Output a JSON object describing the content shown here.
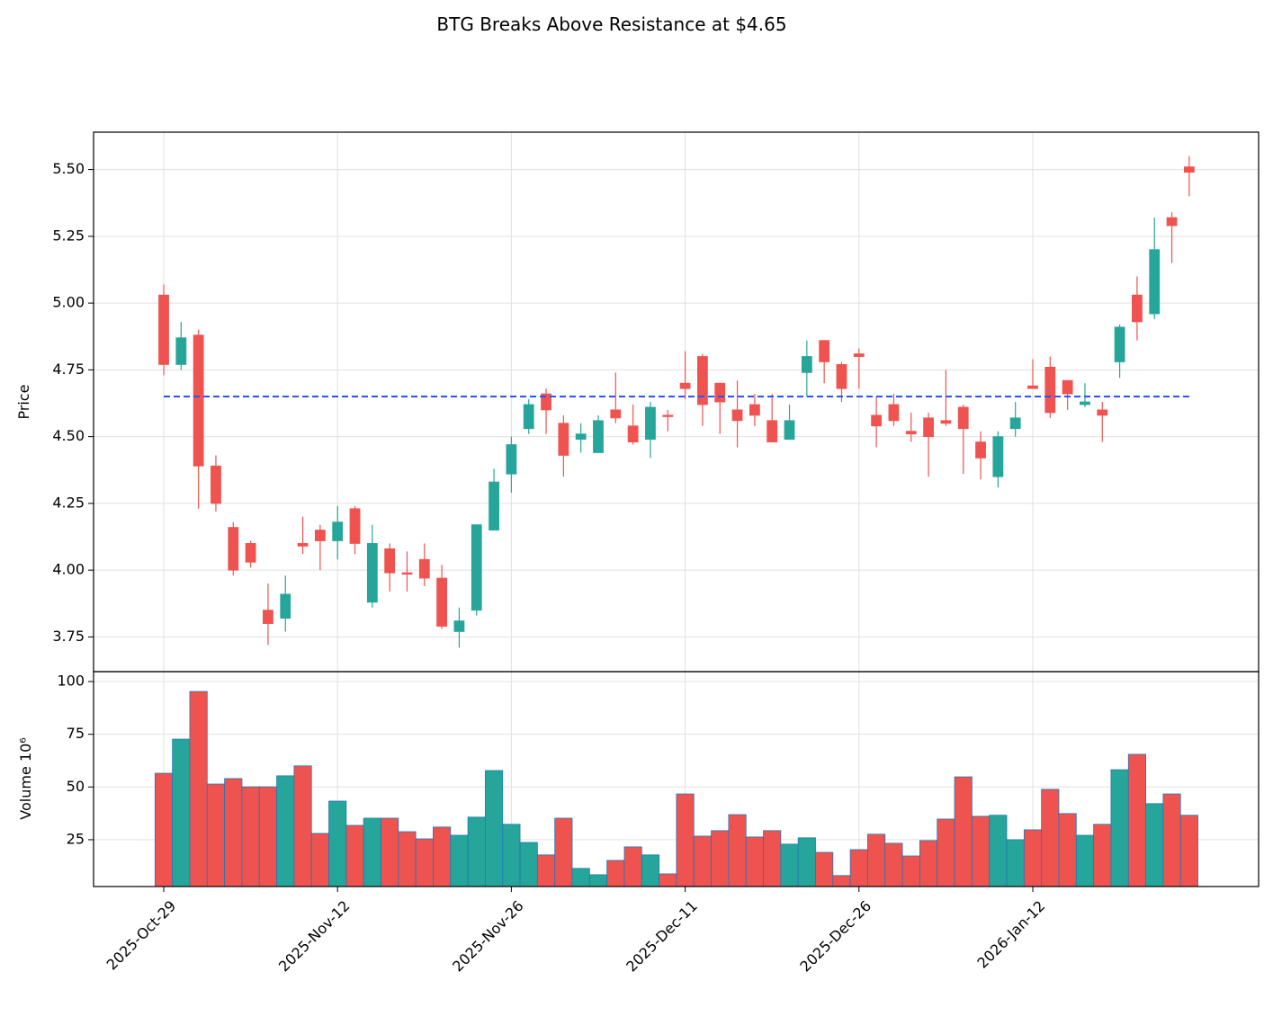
{
  "chart_data": {
    "type": "candlestick",
    "title": "BTG Breaks Above Resistance at $4.65",
    "ylabel": "Price",
    "volume_ylabel": "Volume  10⁶",
    "categories": [
      "2025-Oct-29",
      null,
      null,
      null,
      null,
      null,
      null,
      null,
      null,
      null,
      "2025-Nov-12",
      null,
      null,
      null,
      null,
      null,
      null,
      null,
      null,
      null,
      "2025-Nov-26",
      null,
      null,
      null,
      null,
      null,
      null,
      null,
      null,
      null,
      "2025-Dec-11",
      null,
      null,
      null,
      null,
      null,
      null,
      null,
      null,
      null,
      "2025-Dec-26",
      null,
      null,
      null,
      null,
      null,
      null,
      null,
      null,
      null,
      "2026-Jan-12",
      null,
      null,
      null,
      null,
      null,
      null,
      null,
      null,
      null
    ],
    "open": [
      5.03,
      4.77,
      4.88,
      4.39,
      4.16,
      4.1,
      3.85,
      3.82,
      4.1,
      4.15,
      4.11,
      4.23,
      3.88,
      4.08,
      3.99,
      4.04,
      3.97,
      3.77,
      3.85,
      4.15,
      4.36,
      4.53,
      4.66,
      4.55,
      4.49,
      4.44,
      4.6,
      4.54,
      4.49,
      4.58,
      4.7,
      4.8,
      4.7,
      4.6,
      4.62,
      4.56,
      4.49,
      4.74,
      4.86,
      4.77,
      4.81,
      4.58,
      4.62,
      4.52,
      4.57,
      4.56,
      4.61,
      4.48,
      4.35,
      4.53,
      4.69,
      4.76,
      4.71,
      4.62,
      4.6,
      4.78,
      5.03,
      4.96,
      5.32,
      5.51
    ],
    "high": [
      5.07,
      4.93,
      4.9,
      4.43,
      4.18,
      4.11,
      3.95,
      3.98,
      4.2,
      4.17,
      4.24,
      4.24,
      4.17,
      4.1,
      4.07,
      4.1,
      4.02,
      3.86,
      4.17,
      4.38,
      4.5,
      4.64,
      4.68,
      4.58,
      4.55,
      4.58,
      4.74,
      4.62,
      4.63,
      4.6,
      4.82,
      4.81,
      4.7,
      4.71,
      4.66,
      4.66,
      4.62,
      4.86,
      4.86,
      4.78,
      4.83,
      4.65,
      4.66,
      4.59,
      4.59,
      4.75,
      4.62,
      4.52,
      4.52,
      4.63,
      4.79,
      4.8,
      4.71,
      4.7,
      4.63,
      4.92,
      5.1,
      5.32,
      5.34,
      5.55
    ],
    "low": [
      4.73,
      4.75,
      4.23,
      4.22,
      3.98,
      4.01,
      3.72,
      3.77,
      4.06,
      4.0,
      4.04,
      4.06,
      3.86,
      3.92,
      3.92,
      3.94,
      3.78,
      3.71,
      3.83,
      4.15,
      4.29,
      4.51,
      4.51,
      4.35,
      4.44,
      4.44,
      4.55,
      4.47,
      4.42,
      4.52,
      4.64,
      4.54,
      4.51,
      4.46,
      4.54,
      4.48,
      4.49,
      4.65,
      4.7,
      4.63,
      4.68,
      4.46,
      4.54,
      4.48,
      4.35,
      4.54,
      4.36,
      4.34,
      4.31,
      4.5,
      4.68,
      4.57,
      4.6,
      4.61,
      4.48,
      4.72,
      4.86,
      4.94,
      5.15,
      5.4
    ],
    "close": [
      4.77,
      4.87,
      4.39,
      4.25,
      4.0,
      4.03,
      3.8,
      3.91,
      4.09,
      4.11,
      4.18,
      4.1,
      4.1,
      3.99,
      3.985,
      3.97,
      3.79,
      3.81,
      4.17,
      4.33,
      4.47,
      4.62,
      4.6,
      4.43,
      4.51,
      4.56,
      4.57,
      4.48,
      4.61,
      4.575,
      4.68,
      4.62,
      4.63,
      4.56,
      4.58,
      4.48,
      4.56,
      4.8,
      4.78,
      4.68,
      4.8,
      4.54,
      4.56,
      4.51,
      4.5,
      4.55,
      4.53,
      4.42,
      4.5,
      4.57,
      4.68,
      4.59,
      4.66,
      4.63,
      4.58,
      4.91,
      4.93,
      5.2,
      5.29,
      5.49
    ],
    "volume": [
      56.5,
      72.7,
      95.3,
      51.4,
      54.0,
      50.1,
      50.1,
      55.3,
      60.0,
      28.0,
      43.3,
      31.8,
      35.2,
      35.2,
      28.8,
      25.4,
      31.0,
      27.1,
      35.7,
      57.8,
      32.3,
      23.7,
      17.8,
      35.2,
      11.4,
      8.4,
      15.2,
      21.6,
      17.8,
      8.8,
      46.7,
      26.7,
      29.3,
      36.9,
      26.3,
      29.3,
      22.9,
      25.9,
      19.0,
      8.0,
      20.3,
      27.6,
      23.3,
      17.3,
      24.6,
      34.8,
      54.8,
      36.1,
      36.6,
      25.0,
      29.7,
      48.9,
      37.4,
      27.1,
      32.3,
      58.2,
      65.5,
      42.1,
      46.7,
      36.6
    ],
    "up_color": "#26a69a",
    "down_color": "#ef5350",
    "volume_edge_color": "#1f77b4",
    "ylim": [
      3.62,
      5.64
    ],
    "yticks": [
      3.75,
      {
        "value": 4.0,
        "label": "4.00"
      },
      4.25,
      {
        "value": 4.5,
        "label": "4.50"
      },
      4.75,
      {
        "value": 5.0,
        "label": "5.00"
      },
      5.25,
      {
        "value": 5.5,
        "label": "5.50"
      }
    ],
    "volume_ylim": [
      2.8,
      104.7
    ],
    "volume_yticks": [
      25,
      50,
      75,
      100
    ],
    "resistance": {
      "value": 4.65,
      "color": "#2a52ff"
    },
    "grid": true
  }
}
